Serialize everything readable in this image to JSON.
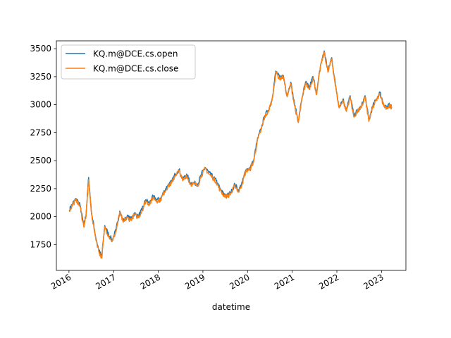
{
  "chart_data": {
    "type": "line",
    "xlabel": "datetime",
    "ylabel": "",
    "title": "",
    "xlim": [
      "2015-09-20",
      "2023-07-20"
    ],
    "ylim": [
      1520,
      3570
    ],
    "grid": false,
    "legend_position": "upper-left",
    "x_ticks": [
      "2016",
      "2017",
      "2018",
      "2019",
      "2020",
      "2021",
      "2022",
      "2023"
    ],
    "y_ticks": [
      1750,
      2000,
      2250,
      2500,
      2750,
      3000,
      3250,
      3500
    ],
    "x": [
      "2016-01-04",
      "2016-02-01",
      "2016-03-01",
      "2016-04-01",
      "2016-05-01",
      "2016-05-20",
      "2016-06-10",
      "2016-07-01",
      "2016-08-01",
      "2016-09-01",
      "2016-09-25",
      "2016-10-20",
      "2016-11-20",
      "2016-12-20",
      "2017-01-20",
      "2017-02-20",
      "2017-03-20",
      "2017-04-20",
      "2017-05-20",
      "2017-06-20",
      "2017-07-20",
      "2017-08-20",
      "2017-09-20",
      "2017-10-20",
      "2017-11-20",
      "2017-12-20",
      "2018-01-20",
      "2018-02-20",
      "2018-03-20",
      "2018-04-20",
      "2018-05-20",
      "2018-06-20",
      "2018-07-20",
      "2018-08-20",
      "2018-09-20",
      "2018-10-20",
      "2018-11-20",
      "2018-12-20",
      "2019-01-20",
      "2019-02-20",
      "2019-03-20",
      "2019-04-20",
      "2019-05-20",
      "2019-06-20",
      "2019-07-20",
      "2019-08-20",
      "2019-09-20",
      "2019-10-20",
      "2019-11-20",
      "2019-12-20",
      "2020-01-20",
      "2020-02-20",
      "2020-03-20",
      "2020-04-20",
      "2020-05-20",
      "2020-06-20",
      "2020-07-20",
      "2020-08-20",
      "2020-09-20",
      "2020-10-20",
      "2020-11-20",
      "2020-12-20",
      "2021-01-20",
      "2021-02-20",
      "2021-03-20",
      "2021-04-20",
      "2021-05-20",
      "2021-06-20",
      "2021-07-20",
      "2021-08-20",
      "2021-09-20",
      "2021-10-20",
      "2021-11-20",
      "2021-12-20",
      "2022-01-20",
      "2022-02-20",
      "2022-03-20",
      "2022-04-20",
      "2022-05-20",
      "2022-06-20",
      "2022-07-20",
      "2022-08-20",
      "2022-09-20",
      "2022-10-20",
      "2022-11-20",
      "2022-12-20",
      "2023-01-20",
      "2023-02-20",
      "2023-03-10",
      "2023-03-25"
    ],
    "series": [
      {
        "name": "KQ.m@DCE.cs.open",
        "color": "#1f77b4",
        "values": [
          2060,
          2120,
          2160,
          2100,
          1920,
          2020,
          2350,
          2060,
          1850,
          1700,
          1640,
          1920,
          1840,
          1790,
          1880,
          2050,
          1960,
          2000,
          1980,
          2030,
          2000,
          2060,
          2150,
          2120,
          2180,
          2150,
          2160,
          2230,
          2280,
          2310,
          2380,
          2420,
          2330,
          2380,
          2300,
          2300,
          2290,
          2380,
          2440,
          2390,
          2360,
          2320,
          2250,
          2200,
          2190,
          2220,
          2290,
          2230,
          2310,
          2420,
          2430,
          2500,
          2680,
          2780,
          2900,
          2950,
          3050,
          3300,
          3240,
          3260,
          3080,
          3200,
          3000,
          2850,
          3050,
          3200,
          3150,
          3250,
          3100,
          3350,
          3480,
          3300,
          3420,
          3180,
          2980,
          3050,
          2950,
          3080,
          2900,
          2950,
          2980,
          3080,
          2860,
          2980,
          3050,
          3110,
          3000,
          2980,
          3000,
          2980
        ]
      },
      {
        "name": "KQ.m@DCE.cs.close",
        "color": "#ff7f0e",
        "values": [
          2050,
          2110,
          2150,
          2090,
          1910,
          2010,
          2330,
          2050,
          1840,
          1690,
          1630,
          1910,
          1830,
          1780,
          1870,
          2040,
          1950,
          1990,
          1970,
          2020,
          1990,
          2050,
          2140,
          2110,
          2170,
          2140,
          2150,
          2220,
          2270,
          2300,
          2370,
          2410,
          2320,
          2370,
          2290,
          2290,
          2280,
          2370,
          2430,
          2380,
          2350,
          2310,
          2240,
          2190,
          2180,
          2210,
          2280,
          2220,
          2300,
          2410,
          2420,
          2490,
          2670,
          2770,
          2890,
          2940,
          3040,
          3290,
          3230,
          3250,
          3070,
          3190,
          2990,
          2840,
          3040,
          3190,
          3140,
          3240,
          3090,
          3340,
          3470,
          3290,
          3410,
          3170,
          2970,
          3040,
          2940,
          3070,
          2890,
          2940,
          2970,
          3070,
          2850,
          2970,
          3040,
          3100,
          2990,
          2970,
          2990,
          2970
        ]
      }
    ]
  }
}
